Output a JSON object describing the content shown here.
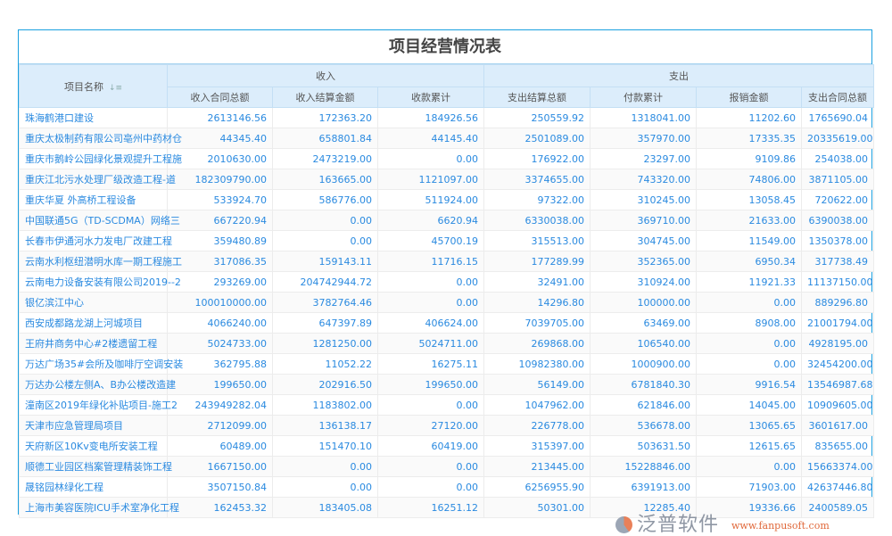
{
  "title": "项目经营情况表",
  "header": {
    "name": "项目名称",
    "sort_icon": "sort-icon",
    "income_group": "收入",
    "expense_group": "支出",
    "columns": [
      "收入合同总额",
      "收入结算金额",
      "收款累计",
      "支出结算总额",
      "付款累计",
      "报销金额",
      "支出合同总额"
    ]
  },
  "rows": [
    [
      "珠海鹤港口建设",
      "2613146.56",
      "172363.20",
      "184926.56",
      "250559.92",
      "1318041.00",
      "11202.60",
      "1765690.04"
    ],
    [
      "重庆太极制药有限公司亳州中药材仓",
      "44345.40",
      "658801.84",
      "44145.40",
      "2501089.00",
      "357970.00",
      "17335.35",
      "20335619.00"
    ],
    [
      "重庆市鹅岭公园绿化景观提升工程施",
      "2010630.00",
      "2473219.00",
      "0.00",
      "176922.00",
      "23297.00",
      "9109.86",
      "254038.00"
    ],
    [
      "重庆江北污水处理厂级改造工程-道",
      "182309790.00",
      "163665.00",
      "1121097.00",
      "3374655.00",
      "743320.00",
      "74806.00",
      "3871105.00"
    ],
    [
      "重庆华夏 外高桥工程设备",
      "533924.70",
      "586776.00",
      "511924.00",
      "97322.00",
      "310245.00",
      "13058.45",
      "720622.00"
    ],
    [
      "中国联通5G（TD-SCDMA）网络三",
      "667220.94",
      "0.00",
      "6620.94",
      "6330038.00",
      "369710.00",
      "21633.00",
      "6390038.00"
    ],
    [
      "长春市伊通河水力发电厂改建工程",
      "359480.89",
      "0.00",
      "45700.19",
      "315513.00",
      "304745.00",
      "11549.00",
      "1350378.00"
    ],
    [
      "云南水利枢纽潜明水库一期工程施工",
      "317086.35",
      "159143.11",
      "11716.15",
      "177289.99",
      "352365.00",
      "6950.34",
      "317738.49"
    ],
    [
      "云南电力设备安装有限公司2019--2",
      "293269.00",
      "204742944.72",
      "0.00",
      "32491.00",
      "310924.00",
      "11921.33",
      "11137150.00"
    ],
    [
      "银亿滨江中心",
      "100010000.00",
      "3782764.46",
      "0.00",
      "14296.80",
      "100000.00",
      "0.00",
      "889296.80"
    ],
    [
      "西安成都路龙湖上河城项目",
      "4066240.00",
      "647397.89",
      "406624.00",
      "7039705.00",
      "63469.00",
      "8908.00",
      "21001794.00"
    ],
    [
      "王府井商务中心#2楼遗留工程",
      "5024733.00",
      "1281250.00",
      "5024711.00",
      "269868.00",
      "106540.00",
      "0.00",
      "4928195.00"
    ],
    [
      "万达广场35#会所及咖啡厅空调安装",
      "362795.88",
      "11052.22",
      "16275.11",
      "10982380.00",
      "1000900.00",
      "0.00",
      "32454200.00"
    ],
    [
      "万达办公楼左侧A、B办公楼改造建",
      "199650.00",
      "202916.50",
      "199650.00",
      "56149.00",
      "6781840.30",
      "9916.54",
      "13546987.68"
    ],
    [
      "潼南区2019年绿化补贴项目-施工2",
      "243949282.04",
      "1183802.00",
      "0.00",
      "1047962.00",
      "621846.00",
      "14045.00",
      "10909605.00"
    ],
    [
      "天津市应急管理局项目",
      "2712099.00",
      "136138.17",
      "27120.00",
      "226778.00",
      "536678.00",
      "13065.65",
      "3601617.00"
    ],
    [
      "天府新区10Kv变电所安装工程",
      "60489.00",
      "151470.10",
      "60419.00",
      "315397.00",
      "503631.50",
      "12615.65",
      "835655.00"
    ],
    [
      "顺德工业园区档案管理精装饰工程",
      "1667150.00",
      "0.00",
      "0.00",
      "213445.00",
      "15228846.00",
      "0.00",
      "15663374.00"
    ],
    [
      "晟铭园林绿化工程",
      "3507150.84",
      "0.00",
      "0.00",
      "6256955.90",
      "6391913.00",
      "71903.00",
      "42637446.80"
    ],
    [
      "上海市美容医院ICU手术室净化工程",
      "162453.32",
      "183405.08",
      "16251.12",
      "50301.00",
      "12285.40",
      "19336.66",
      "2400589.05"
    ]
  ],
  "watermark": {
    "brand": "泛普软件",
    "url": "www.fanpusoft.com"
  }
}
